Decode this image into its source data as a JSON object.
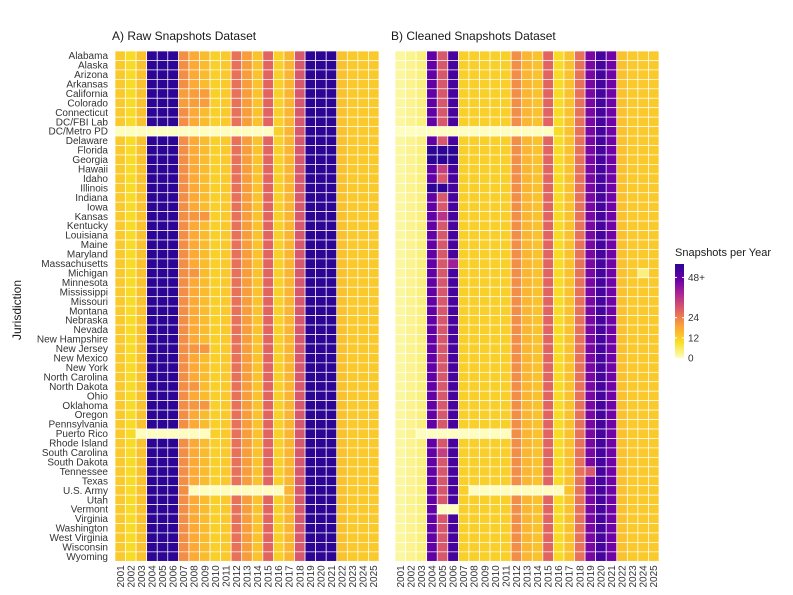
{
  "chart_data": [
    {
      "type": "heatmap",
      "title": "A) Raw Snapshots Dataset",
      "xlabel": "",
      "ylabel": "Jurisdiction",
      "years": [
        "2001",
        "2002",
        "2003",
        "2004",
        "2005",
        "2006",
        "2007",
        "2008",
        "2009",
        "2010",
        "2011",
        "2012",
        "2013",
        "2014",
        "2015",
        "2016",
        "2017",
        "2018",
        "2019",
        "2020",
        "2021",
        "2022",
        "2023",
        "2024",
        "2025"
      ],
      "jurisdictions": [
        "Alabama",
        "Alaska",
        "Arizona",
        "Arkansas",
        "California",
        "Colorado",
        "Connecticut",
        "DC/FBI Lab",
        "DC/Metro PD",
        "Delaware",
        "Florida",
        "Georgia",
        "Hawaii",
        "Idaho",
        "Illinois",
        "Indiana",
        "Iowa",
        "Kansas",
        "Kentucky",
        "Louisiana",
        "Maine",
        "Maryland",
        "Massachusetts",
        "Michigan",
        "Minnesota",
        "Mississippi",
        "Missouri",
        "Montana",
        "Nebraska",
        "Nevada",
        "New Hampshire",
        "New Jersey",
        "New Mexico",
        "New York",
        "North Carolina",
        "North Dakota",
        "Ohio",
        "Oklahoma",
        "Oregon",
        "Pennsylvania",
        "Puerto Rico",
        "Rhode Island",
        "South Carolina",
        "South Dakota",
        "Tennessee",
        "Texas",
        "U.S. Army",
        "Utah",
        "Vermont",
        "Virginia",
        "Washington",
        "West Virginia",
        "Wisconsin",
        "Wyoming"
      ],
      "baseline_by_year": [
        13,
        10,
        14,
        60,
        60,
        60,
        22,
        18,
        15,
        12,
        13,
        26,
        20,
        14,
        28,
        12,
        16,
        30,
        60,
        60,
        60,
        14,
        13,
        13,
        13
      ],
      "overrides": [
        {
          "jurisdiction": "DC/Metro PD",
          "years": [
            "2001",
            "2002",
            "2003",
            "2004",
            "2005",
            "2006",
            "2007",
            "2008",
            "2009",
            "2010",
            "2011",
            "2012",
            "2013",
            "2014",
            "2015"
          ],
          "value": 0
        },
        {
          "jurisdiction": "Puerto Rico",
          "years": [
            "2003",
            "2004",
            "2005",
            "2006",
            "2007",
            "2008",
            "2009"
          ],
          "value": 0
        },
        {
          "jurisdiction": "U.S. Army",
          "years": [
            "2008",
            "2009",
            "2010",
            "2011",
            "2012",
            "2013",
            "2014",
            "2015",
            "2016"
          ],
          "value": 0
        },
        {
          "jurisdiction": "California",
          "years": [
            "2007",
            "2008",
            "2009"
          ],
          "value": 20
        },
        {
          "jurisdiction": "Colorado",
          "years": [
            "2007",
            "2008",
            "2009"
          ],
          "value": 20
        },
        {
          "jurisdiction": "Kansas",
          "years": [
            "2008",
            "2009"
          ],
          "value": 21
        },
        {
          "jurisdiction": "Oklahoma",
          "years": [
            "2008",
            "2009"
          ],
          "value": 21
        },
        {
          "jurisdiction": "New Jersey",
          "years": [
            "2008",
            "2009"
          ],
          "value": 21
        },
        {
          "jurisdiction": "North Dakota",
          "years": [
            "2008"
          ],
          "value": 21
        },
        {
          "jurisdiction": "Michigan",
          "years": [
            "2008"
          ],
          "value": 21
        }
      ]
    },
    {
      "type": "heatmap",
      "title": "B) Cleaned Snapshots Dataset",
      "xlabel": "",
      "ylabel": "",
      "years": [
        "2001",
        "2002",
        "2003",
        "2004",
        "2005",
        "2006",
        "2007",
        "2008",
        "2009",
        "2010",
        "2011",
        "2012",
        "2013",
        "2014",
        "2015",
        "2016",
        "2017",
        "2018",
        "2019",
        "2020",
        "2021",
        "2022",
        "2023",
        "2024",
        "2025"
      ],
      "jurisdictions": [
        "Alabama",
        "Alaska",
        "Arizona",
        "Arkansas",
        "California",
        "Colorado",
        "Connecticut",
        "DC/FBI Lab",
        "DC/Metro PD",
        "Delaware",
        "Florida",
        "Georgia",
        "Hawaii",
        "Idaho",
        "Illinois",
        "Indiana",
        "Iowa",
        "Kansas",
        "Kentucky",
        "Louisiana",
        "Maine",
        "Maryland",
        "Massachusetts",
        "Michigan",
        "Minnesota",
        "Mississippi",
        "Missouri",
        "Montana",
        "Nebraska",
        "Nevada",
        "New Hampshire",
        "New Jersey",
        "New Mexico",
        "New York",
        "North Carolina",
        "North Dakota",
        "Ohio",
        "Oklahoma",
        "Oregon",
        "Pennsylvania",
        "Puerto Rico",
        "Rhode Island",
        "South Carolina",
        "South Dakota",
        "Tennessee",
        "Texas",
        "U.S. Army",
        "Utah",
        "Vermont",
        "Virginia",
        "Washington",
        "West Virginia",
        "Wisconsin",
        "Wyoming"
      ],
      "baseline_by_year": [
        2,
        3,
        4,
        48,
        30,
        52,
        12,
        12,
        12,
        12,
        12,
        22,
        16,
        14,
        28,
        10,
        14,
        26,
        45,
        52,
        46,
        14,
        13,
        13,
        13
      ],
      "overrides": [
        {
          "jurisdiction": "DC/Metro PD",
          "years": [
            "2001",
            "2002",
            "2003",
            "2004",
            "2005",
            "2006",
            "2007",
            "2008",
            "2009",
            "2010",
            "2011",
            "2012",
            "2013",
            "2014",
            "2015"
          ],
          "value": 0
        },
        {
          "jurisdiction": "Puerto Rico",
          "years": [
            "2003",
            "2004",
            "2005",
            "2006",
            "2007",
            "2008",
            "2009",
            "2010",
            "2011"
          ],
          "value": 0
        },
        {
          "jurisdiction": "U.S. Army",
          "years": [
            "2008",
            "2009",
            "2010",
            "2011",
            "2012",
            "2013",
            "2014",
            "2015",
            "2016"
          ],
          "value": 0
        },
        {
          "jurisdiction": "Vermont",
          "years": [
            "2005",
            "2006"
          ],
          "value": 0
        },
        {
          "jurisdiction": "Florida",
          "years": [
            "2004",
            "2005",
            "2006"
          ],
          "value": 56
        },
        {
          "jurisdiction": "Georgia",
          "years": [
            "2004",
            "2005",
            "2006"
          ],
          "value": 56
        },
        {
          "jurisdiction": "Illinois",
          "years": [
            "2004",
            "2005"
          ],
          "value": 56
        },
        {
          "jurisdiction": "Hawaii",
          "years": [
            "2005"
          ],
          "value": 34
        },
        {
          "jurisdiction": "Kansas",
          "years": [
            "2005"
          ],
          "value": 36
        },
        {
          "jurisdiction": "Massachusetts",
          "years": [
            "2006"
          ],
          "value": 40
        },
        {
          "jurisdiction": "South Carolina",
          "years": [
            "2005"
          ],
          "value": 34
        },
        {
          "jurisdiction": "Tennessee",
          "years": [
            "2019"
          ],
          "value": 30
        },
        {
          "jurisdiction": "Michigan",
          "years": [
            "2024"
          ],
          "value": 4
        }
      ]
    }
  ],
  "legend": {
    "title": "Snapshots per Year",
    "labels": [
      "48+",
      "24",
      "12",
      "0"
    ],
    "values": [
      48,
      24,
      12,
      0
    ],
    "max": 56
  },
  "colors": {
    "scale": [
      "#fcfdbf",
      "#f8df25",
      "#fca636",
      "#e16462",
      "#b12a90",
      "#6a00a8",
      "#2c0594"
    ]
  }
}
